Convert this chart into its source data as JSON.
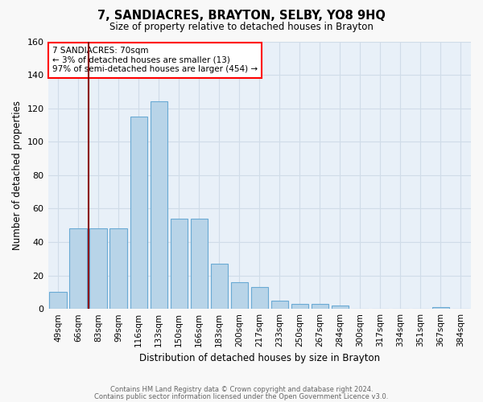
{
  "title": "7, SANDIACRES, BRAYTON, SELBY, YO8 9HQ",
  "subtitle": "Size of property relative to detached houses in Brayton",
  "xlabel": "Distribution of detached houses by size in Brayton",
  "ylabel": "Number of detached properties",
  "bar_color": "#b8d4e8",
  "bar_edge_color": "#6aaad4",
  "background_color": "#e8f0f8",
  "grid_color": "#d0dce8",
  "annotation_text": "7 SANDIACRES: 70sqm\n← 3% of detached houses are smaller (13)\n97% of semi-detached houses are larger (454) →",
  "vline_color": "#8b0000",
  "vline_x_index": 1,
  "categories": [
    "49sqm",
    "66sqm",
    "83sqm",
    "99sqm",
    "116sqm",
    "133sqm",
    "150sqm",
    "166sqm",
    "183sqm",
    "200sqm",
    "217sqm",
    "233sqm",
    "250sqm",
    "267sqm",
    "284sqm",
    "300sqm",
    "317sqm",
    "334sqm",
    "351sqm",
    "367sqm",
    "384sqm"
  ],
  "values": [
    10,
    48,
    48,
    48,
    115,
    124,
    54,
    54,
    27,
    16,
    13,
    5,
    3,
    3,
    2,
    0,
    0,
    0,
    0,
    1,
    0
  ],
  "ylim": [
    0,
    160
  ],
  "yticks": [
    0,
    20,
    40,
    60,
    80,
    100,
    120,
    140,
    160
  ],
  "footnote1": "Contains HM Land Registry data © Crown copyright and database right 2024.",
  "footnote2": "Contains public sector information licensed under the Open Government Licence v3.0."
}
